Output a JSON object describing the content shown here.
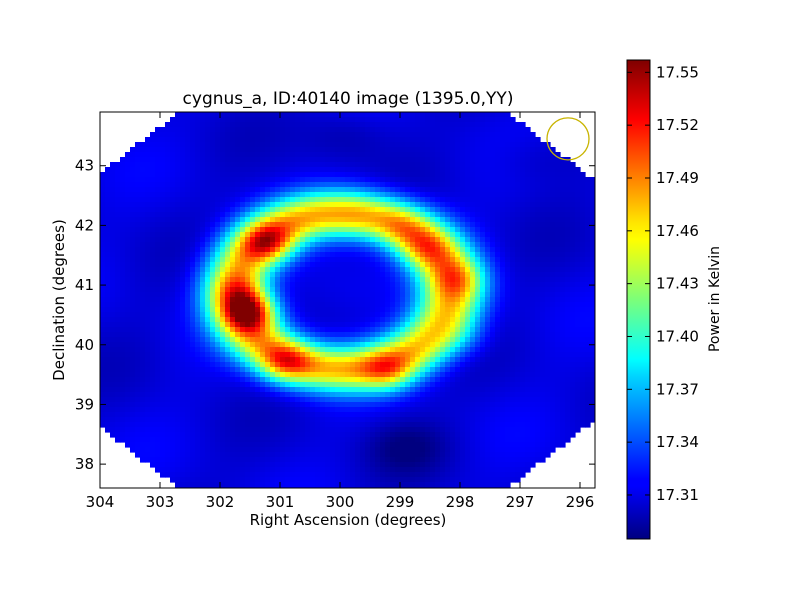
{
  "chart_data": {
    "type": "heatmap",
    "title": "cygnus_a, ID:40140 image (1395.0,YY)",
    "xlabel": "Right Ascension (degrees)",
    "ylabel": "Declination (degrees)",
    "xlim": [
      304,
      295.75
    ],
    "ylim": [
      37.6,
      43.9
    ],
    "x_ticks": [
      304,
      303,
      302,
      301,
      300,
      299,
      298,
      297,
      296
    ],
    "y_ticks": [
      38,
      39,
      40,
      41,
      42,
      43
    ],
    "colorbar": {
      "label": "Power in Kelvin",
      "min": 17.285,
      "max": 17.557,
      "ticks": [
        "17.31",
        "17.34",
        "17.37",
        "17.40",
        "17.43",
        "17.46",
        "17.49",
        "17.52",
        "17.55"
      ],
      "colormap": "jet"
    },
    "grid": false,
    "ring": {
      "center_ra": 299.95,
      "center_dec": 40.9,
      "radius_ra_deg": 1.8,
      "radius_dec_deg": 1.3,
      "baseline_kelvin": 17.31,
      "ring_peak_kelvin": 17.47,
      "inner_hole_kelvin": 17.33
    },
    "hotspots": [
      {
        "ra": 301.5,
        "dec": 40.55,
        "kelvin": 17.555
      },
      {
        "ra": 301.2,
        "dec": 41.7,
        "kelvin": 17.53
      },
      {
        "ra": 300.9,
        "dec": 39.7,
        "kelvin": 17.52
      },
      {
        "ra": 301.7,
        "dec": 40.9,
        "kelvin": 17.5
      },
      {
        "ra": 299.2,
        "dec": 39.55,
        "kelvin": 17.51
      },
      {
        "ra": 298.0,
        "dec": 41.1,
        "kelvin": 17.5
      },
      {
        "ra": 298.6,
        "dec": 41.6,
        "kelvin": 17.5
      },
      {
        "ra": 299.0,
        "dec": 41.95,
        "kelvin": 17.49
      },
      {
        "ra": 299.75,
        "dec": 42.05,
        "kelvin": 17.48
      },
      {
        "ra": 297.9,
        "dec": 40.1,
        "kelvin": 17.48
      },
      {
        "ra": 300.0,
        "dec": 39.45,
        "kelvin": 17.47
      }
    ],
    "dark_spots": [
      {
        "ra": 299.9,
        "dec": 43.5,
        "kelvin": 17.295
      },
      {
        "ra": 298.9,
        "dec": 38.3,
        "kelvin": 17.29
      },
      {
        "ra": 296.8,
        "dec": 43.1,
        "kelvin": 17.3
      }
    ],
    "beam_marker": {
      "ra": 296.2,
      "dec": 43.45,
      "color": "#c8b400"
    }
  }
}
